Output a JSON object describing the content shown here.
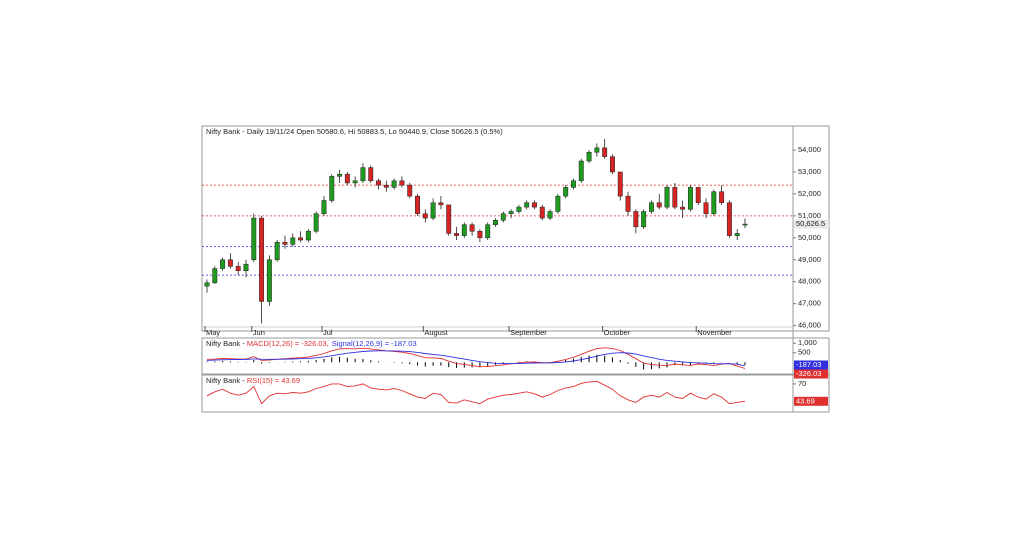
{
  "chart_data": [
    {
      "type": "candlestick",
      "title": "Nifty Bank - Daily 19/11/24 Open 50580.6, Hi 50883.5, Lo 50440.9, Close 50626.5 (0.5%)",
      "categories": [
        "May",
        null,
        null,
        null,
        null,
        null,
        "Jun",
        null,
        null,
        null,
        null,
        null,
        null,
        null,
        null,
        "Jul",
        null,
        null,
        null,
        null,
        null,
        null,
        null,
        null,
        null,
        null,
        null,
        null,
        "August",
        null,
        null,
        null,
        null,
        null,
        null,
        null,
        null,
        null,
        null,
        "September",
        null,
        null,
        null,
        null,
        null,
        null,
        null,
        null,
        null,
        null,
        null,
        "October",
        null,
        null,
        null,
        null,
        null,
        null,
        null,
        null,
        null,
        null,
        null,
        "November",
        null,
        null,
        null,
        null,
        null,
        null
      ],
      "open": [
        47800,
        47950,
        48600,
        49000,
        48700,
        48500,
        49000,
        50900,
        47100,
        49000,
        49800,
        49700,
        50000,
        49900,
        50300,
        51100,
        51700,
        52800,
        52900,
        52500,
        52600,
        53200,
        52600,
        52400,
        52300,
        52600,
        52400,
        51900,
        51100,
        50900,
        51600,
        51500,
        50200,
        50100,
        50600,
        50300,
        50000,
        50600,
        50800,
        51100,
        51200,
        51400,
        51600,
        51400,
        50900,
        51200,
        51900,
        52300,
        52600,
        53500,
        53900,
        54100,
        53700,
        53000,
        51900,
        51200,
        50500,
        51200,
        51600,
        51400,
        52300,
        51400,
        51300,
        52300,
        51600,
        51100,
        52100,
        51600,
        50100,
        50580.6
      ],
      "high": [
        48100,
        48700,
        49100,
        49300,
        48900,
        49000,
        51100,
        51000,
        49200,
        49900,
        50100,
        50200,
        50300,
        50400,
        51200,
        51900,
        52900,
        53100,
        53000,
        52800,
        53400,
        53300,
        52700,
        52600,
        52700,
        52800,
        52500,
        52000,
        51300,
        51800,
        51900,
        51500,
        50500,
        50700,
        50700,
        50400,
        50700,
        50900,
        51200,
        51300,
        51500,
        51700,
        51700,
        51500,
        51300,
        52000,
        52400,
        52700,
        53600,
        54000,
        54300,
        54500,
        53800,
        53000,
        52100,
        51300,
        51300,
        51700,
        52000,
        52400,
        52500,
        51700,
        52400,
        52300,
        51800,
        52200,
        52400,
        51700,
        50400,
        50883.5
      ],
      "low": [
        47500,
        47900,
        48500,
        48600,
        48300,
        48200,
        48900,
        46100,
        46900,
        48900,
        49500,
        49600,
        49800,
        49800,
        50200,
        51000,
        51600,
        52500,
        52400,
        52300,
        52500,
        52500,
        52200,
        52100,
        52200,
        52300,
        51800,
        51000,
        50700,
        50800,
        51300,
        50100,
        49900,
        50000,
        50100,
        49800,
        49900,
        50500,
        50700,
        50900,
        51100,
        51300,
        51300,
        50800,
        50800,
        51100,
        51800,
        52200,
        52500,
        53400,
        53700,
        53600,
        52900,
        51700,
        51000,
        50200,
        50400,
        51100,
        51300,
        51300,
        51300,
        50900,
        51200,
        51500,
        50900,
        51000,
        51500,
        50000,
        49900,
        50440.9
      ],
      "close": [
        47950,
        48600,
        49000,
        48700,
        48500,
        48800,
        50900,
        47100,
        49000,
        49800,
        49700,
        50000,
        49900,
        50300,
        51100,
        51700,
        52800,
        52900,
        52500,
        52600,
        53200,
        52600,
        52400,
        52300,
        52600,
        52400,
        51900,
        51100,
        50900,
        51600,
        51500,
        50200,
        50100,
        50600,
        50300,
        50000,
        50600,
        50800,
        51100,
        51200,
        51400,
        51600,
        51400,
        50900,
        51200,
        51900,
        52300,
        52600,
        53500,
        53900,
        54100,
        53700,
        53000,
        51900,
        51200,
        50500,
        51200,
        51600,
        51400,
        52300,
        51400,
        51300,
        52300,
        51600,
        51100,
        52100,
        51600,
        50100,
        50200,
        50626.5
      ],
      "up_color": "#1e9b1e",
      "down_color": "#d42424",
      "ylim": [
        45800,
        55050
      ],
      "yticks": [
        {
          "value": 46000,
          "label": "46,000"
        },
        {
          "value": 47000,
          "label": "47,000"
        },
        {
          "value": 48000,
          "label": "48,000"
        },
        {
          "value": 49000,
          "label": "49,000"
        },
        {
          "value": 50000,
          "label": "50,000"
        },
        {
          "value": 51000,
          "label": "51,000"
        },
        {
          "value": 52000,
          "label": "52,000"
        },
        {
          "value": 53000,
          "label": "53,000"
        },
        {
          "value": 54000,
          "label": "54,000"
        }
      ],
      "last_label": "50,626.5",
      "hlines": [
        {
          "value": 52400,
          "color": "#e03030"
        },
        {
          "value": 51000,
          "color": "#e03030"
        },
        {
          "value": 49600,
          "color": "#3030e0"
        },
        {
          "value": 48300,
          "color": "#3030e0"
        }
      ]
    },
    {
      "type": "macd",
      "title_prefix": "Nifty Bank - ",
      "series": [
        {
          "name": "MACD(12,26) = -326.03,",
          "color": "#e03030",
          "values": [
            150,
            170,
            200,
            190,
            170,
            170,
            300,
            100,
            120,
            160,
            190,
            220,
            240,
            280,
            360,
            460,
            600,
            700,
            720,
            700,
            740,
            700,
            650,
            600,
            570,
            530,
            460,
            350,
            240,
            230,
            200,
            60,
            -60,
            -110,
            -170,
            -230,
            -220,
            -180,
            -130,
            -80,
            -30,
            10,
            20,
            -20,
            -20,
            60,
            150,
            260,
            420,
            580,
            720,
            760,
            730,
            620,
            420,
            190,
            -40,
            -120,
            -150,
            -170,
            -90,
            -130,
            -160,
            -90,
            -120,
            -170,
            -100,
            -60,
            -200,
            -326.03
          ]
        },
        {
          "name": "Signal(12,26,9) = -187.03",
          "color": "#3030e0",
          "values": [
            100,
            115,
            130,
            140,
            145,
            150,
            180,
            165,
            155,
            155,
            162,
            174,
            187,
            206,
            237,
            282,
            345,
            416,
            477,
            522,
            566,
            593,
            604,
            603,
            596,
            583,
            558,
            516,
            461,
            415,
            372,
            310,
            236,
            167,
            99,
            33,
            -18,
            -50,
            -66,
            -69,
            -61,
            -47,
            -34,
            -31,
            -29,
            -11,
            21,
            69,
            139,
            227,
            326,
            413,
            476,
            505,
            488,
            428,
            335,
            244,
            165,
            98,
            60,
            22,
            -14,
            -29,
            -47,
            -72,
            -78,
            -74,
            -99,
            -187.03
          ]
        }
      ],
      "histogram": {
        "color": "#000000",
        "values": [
          50,
          55,
          70,
          50,
          25,
          20,
          120,
          -65,
          -35,
          5,
          28,
          46,
          53,
          74,
          123,
          178,
          255,
          284,
          243,
          178,
          174,
          107,
          46,
          -3,
          -26,
          -53,
          -98,
          -166,
          -221,
          -185,
          -172,
          -250,
          -296,
          -277,
          -269,
          -263,
          -202,
          -130,
          -64,
          -11,
          31,
          57,
          54,
          11,
          9,
          71,
          129,
          191,
          281,
          353,
          394,
          347,
          254,
          115,
          -68,
          -238,
          -375,
          -364,
          -315,
          -268,
          -150,
          -152,
          -146,
          -61,
          -73,
          -98,
          -22,
          14,
          -101,
          -139
        ]
      },
      "ylim": [
        -560,
        1220
      ],
      "yticks": [
        {
          "value": 1000,
          "label": "1,000"
        },
        500
      ]
    },
    {
      "type": "line",
      "title_prefix": "Nifty Bank - ",
      "series": [
        {
          "name": "RSI(15) = 43.69",
          "color": "#e03030",
          "values": [
            52,
            58,
            62,
            56,
            53,
            56,
            66,
            40,
            52,
            56,
            55,
            57,
            56,
            58,
            63,
            66,
            70,
            70,
            66,
            67,
            70,
            64,
            62,
            61,
            63,
            60,
            55,
            50,
            48,
            56,
            54,
            42,
            41,
            46,
            43,
            40,
            47,
            50,
            53,
            54,
            56,
            58,
            55,
            50,
            54,
            60,
            64,
            66,
            71,
            73,
            74,
            68,
            62,
            52,
            46,
            42,
            50,
            53,
            50,
            57,
            50,
            48,
            56,
            50,
            47,
            55,
            50,
            40,
            42,
            43.69
          ]
        }
      ],
      "ylim": [
        29,
        82
      ],
      "yticks": [
        70
      ]
    }
  ]
}
